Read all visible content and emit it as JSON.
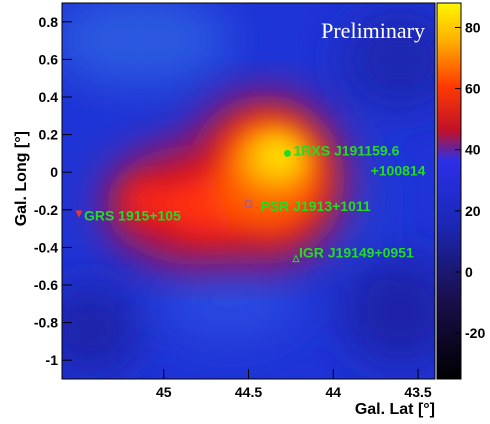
{
  "chart_data": {
    "type": "heatmap",
    "annotation": "Preliminary",
    "xlabel": "Gal. Lat [°]",
    "ylabel": "Gal. Long [°]",
    "xlim": [
      45.6,
      43.4
    ],
    "ylim": [
      -1.1,
      0.9
    ],
    "x_ticks": [
      45,
      44.5,
      44,
      43.5
    ],
    "x_tick_labels": [
      "45",
      "44.5",
      "44",
      "43.5"
    ],
    "y_ticks": [
      0.8,
      0.6,
      0.4,
      0.2,
      0,
      -0.2,
      -0.4,
      -0.6,
      -0.8,
      -1
    ],
    "y_tick_labels": [
      "0.8",
      "0.6",
      "0.4",
      "0.2",
      "0",
      "-0.2",
      "-0.4",
      "-0.6",
      "-0.8",
      "-1"
    ],
    "colorbar": {
      "range": [
        -35,
        88
      ],
      "ticks": [
        80,
        60,
        40,
        20,
        0,
        -20
      ],
      "tick_labels": [
        "80",
        "60",
        "40",
        "20",
        "0",
        "-20"
      ]
    },
    "sources": [
      {
        "name": "1RXS J191159.6\n+100814",
        "label_lines": [
          "1RXS J191159.6",
          "+100814"
        ],
        "x": 44.27,
        "y": 0.1,
        "marker": "dot",
        "color": "#22dd22"
      },
      {
        "name": "PSR J1913+1011",
        "label_lines": [
          "PSR J1913+1011"
        ],
        "x": 44.5,
        "y": -0.17,
        "marker": "square",
        "color": "#6666ff"
      },
      {
        "name": "GRS 1915+105",
        "label_lines": [
          "GRS 1915+105"
        ],
        "x": 45.5,
        "y": -0.22,
        "marker": "triangle-down",
        "color": "#ee3333"
      },
      {
        "name": "IGR J19149+0951",
        "label_lines": [
          "IGR J19149+0951"
        ],
        "x": 44.22,
        "y": -0.46,
        "marker": "triangle-up",
        "color": "#22dd22"
      }
    ],
    "emission_peak": {
      "x": 44.22,
      "y": 0.07,
      "value": 85
    }
  }
}
